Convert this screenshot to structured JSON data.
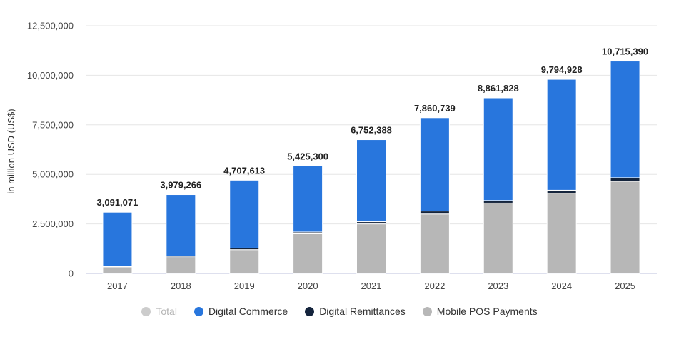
{
  "chart_data": {
    "type": "bar",
    "stacked": true,
    "ylabel": "in million USD (US$)",
    "xlabel": "",
    "ylim": [
      0,
      12500000
    ],
    "yticks": [
      0,
      2500000,
      5000000,
      7500000,
      10000000,
      12500000
    ],
    "ytick_labels": [
      "0",
      "2,500,000",
      "5,000,000",
      "7,500,000",
      "10,000,000",
      "12,500,000"
    ],
    "categories": [
      "2017",
      "2018",
      "2019",
      "2020",
      "2021",
      "2022",
      "2023",
      "2024",
      "2025"
    ],
    "series": [
      {
        "name": "Mobile POS Payments",
        "color": "#b7b7b7",
        "values": [
          330000,
          800000,
          1200000,
          2000000,
          2500000,
          3000000,
          3550000,
          4050000,
          4650000
        ]
      },
      {
        "name": "Digital Remittances",
        "color": "#14243c",
        "values": [
          30000,
          60000,
          80000,
          90000,
          110000,
          150000,
          130000,
          150000,
          180000
        ]
      },
      {
        "name": "Digital Commerce",
        "color": "#2876dd",
        "values": [
          2731071,
          3119266,
          3427613,
          3335300,
          4142388,
          4710739,
          5181828,
          5594928,
          5885390
        ]
      }
    ],
    "totals": [
      3091071,
      3979266,
      4707613,
      5425300,
      6752388,
      7860739,
      8861828,
      9794928,
      10715390
    ],
    "total_labels": [
      "3,091,071",
      "3,979,266",
      "4,707,613",
      "5,425,300",
      "6,752,388",
      "7,860,739",
      "8,861,828",
      "9,794,928",
      "10,715,390"
    ],
    "grid": true,
    "legend": {
      "placement": "bottom-center",
      "items": [
        {
          "label": "Total",
          "color": "#cccccc",
          "hidden": true
        },
        {
          "label": "Digital Commerce",
          "color": "#2876dd",
          "hidden": false
        },
        {
          "label": "Digital Remittances",
          "color": "#14243c",
          "hidden": false
        },
        {
          "label": "Mobile POS Payments",
          "color": "#b7b7b7",
          "hidden": false
        }
      ]
    }
  }
}
